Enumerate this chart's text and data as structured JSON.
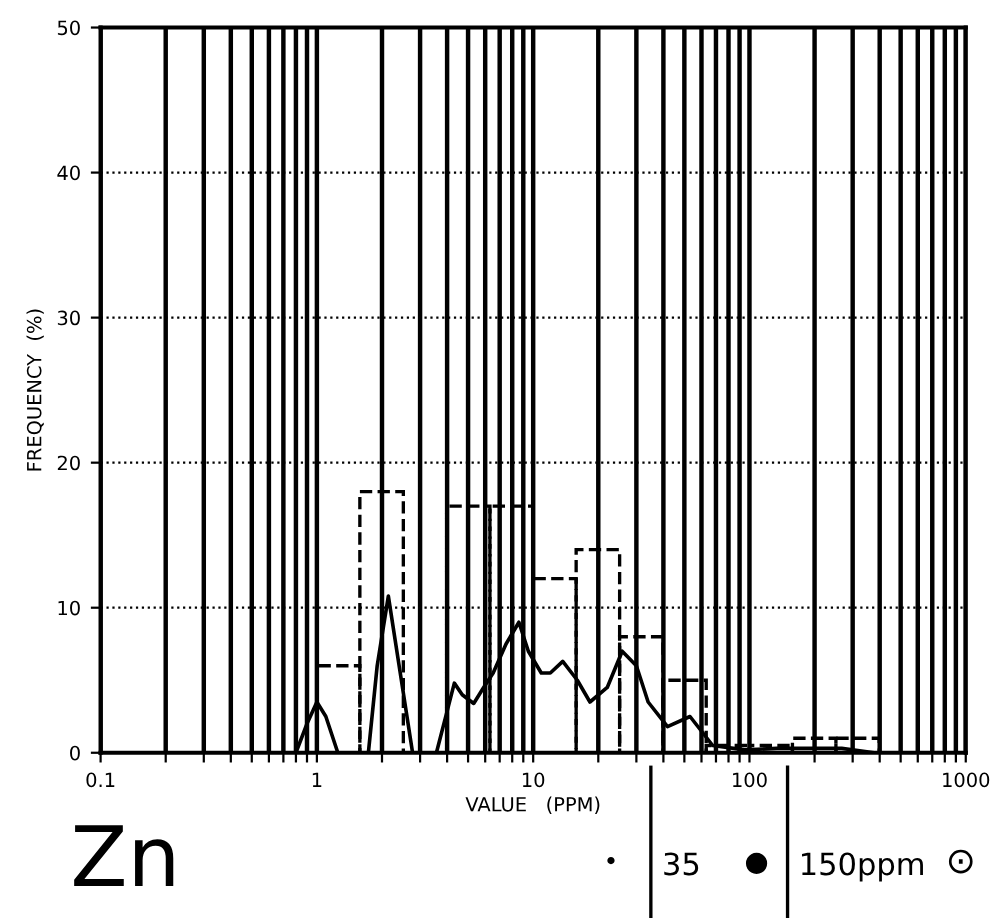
{
  "chart_data": {
    "type": "histogram",
    "xlabel": "VALUE   (PPM)",
    "ylabel": "FREQUENCY  (%)",
    "log": "x",
    "color": "#000000",
    "line_style": "dashed",
    "bins": [
      1,
      1.58,
      2.51,
      3.98,
      6.31,
      10,
      15.8,
      25.1,
      39.8,
      63.1,
      100,
      158,
      251,
      398
    ],
    "values": [
      6,
      18,
      0,
      17,
      17,
      12,
      14,
      8,
      5,
      0.5,
      0.5,
      1,
      1
    ],
    "series": [
      {
        "type": "line",
        "color": "#000000",
        "line_style": "solid",
        "x": [
          0.1,
          0.8,
          0.9,
          1.0,
          1.1,
          1.25,
          1.73,
          1.9,
          2.14,
          2.4,
          2.77,
          3.57,
          4.32,
          4.7,
          5.31,
          5.9,
          6.53,
          7.49,
          8.59,
          9.5,
          10.9,
          12,
          13.7,
          16,
          18.3,
          22,
          25.8,
          30,
          34.0,
          41.8,
          53.1,
          67.6,
          95,
          134,
          267,
          377,
          1000
        ],
        "values": [
          0,
          0,
          2,
          3.5,
          2.5,
          0,
          0,
          6,
          10.8,
          6,
          0,
          0,
          4.8,
          4,
          3.4,
          4.5,
          5.5,
          7.5,
          9,
          7,
          5.5,
          5.5,
          6.3,
          5,
          3.5,
          4.5,
          7,
          6,
          3.5,
          1.8,
          2.5,
          0.5,
          0.2,
          0.3,
          0.3,
          0,
          0
        ]
      }
    ],
    "xlim": [
      0.1,
      1000
    ],
    "ylim": [
      0,
      50
    ],
    "xticks": [
      {
        "value": 0.1,
        "label": "0.1"
      },
      {
        "value": 0.2,
        "label": null
      },
      {
        "value": 0.3,
        "label": null
      },
      {
        "value": 0.4,
        "label": null
      },
      {
        "value": 0.5,
        "label": null
      },
      {
        "value": 0.6,
        "label": null
      },
      {
        "value": 0.7,
        "label": null
      },
      {
        "value": 0.8,
        "label": null
      },
      {
        "value": 0.9,
        "label": null
      },
      {
        "value": 1,
        "label": "1"
      },
      {
        "value": 2,
        "label": null
      },
      {
        "value": 3,
        "label": null
      },
      {
        "value": 4,
        "label": null
      },
      {
        "value": 5,
        "label": null
      },
      {
        "value": 6,
        "label": null
      },
      {
        "value": 7,
        "label": null
      },
      {
        "value": 8,
        "label": null
      },
      {
        "value": 9,
        "label": null
      },
      {
        "value": 10,
        "label": "10"
      },
      {
        "value": 20,
        "label": null
      },
      {
        "value": 30,
        "label": null
      },
      {
        "value": 40,
        "label": null
      },
      {
        "value": 50,
        "label": null
      },
      {
        "value": 60,
        "label": null
      },
      {
        "value": 70,
        "label": null
      },
      {
        "value": 80,
        "label": null
      },
      {
        "value": 90,
        "label": null
      },
      {
        "value": 100,
        "label": "100"
      },
      {
        "value": 200,
        "label": null
      },
      {
        "value": 300,
        "label": null
      },
      {
        "value": 400,
        "label": null
      },
      {
        "value": 500,
        "label": null
      },
      {
        "value": 600,
        "label": null
      },
      {
        "value": 700,
        "label": null
      },
      {
        "value": 800,
        "label": null
      },
      {
        "value": 900,
        "label": null
      },
      {
        "value": 1000,
        "label": "1000"
      }
    ],
    "yticks": [
      0,
      10,
      20,
      30,
      40,
      50
    ],
    "grid": true,
    "ref_lines": [
      {
        "axis": "x",
        "value": 35,
        "label": "35"
      },
      {
        "axis": "x",
        "value": 150,
        "label": "150ppm"
      }
    ],
    "annotations": [
      "Zn",
      "•",
      "●",
      "⊙"
    ]
  }
}
